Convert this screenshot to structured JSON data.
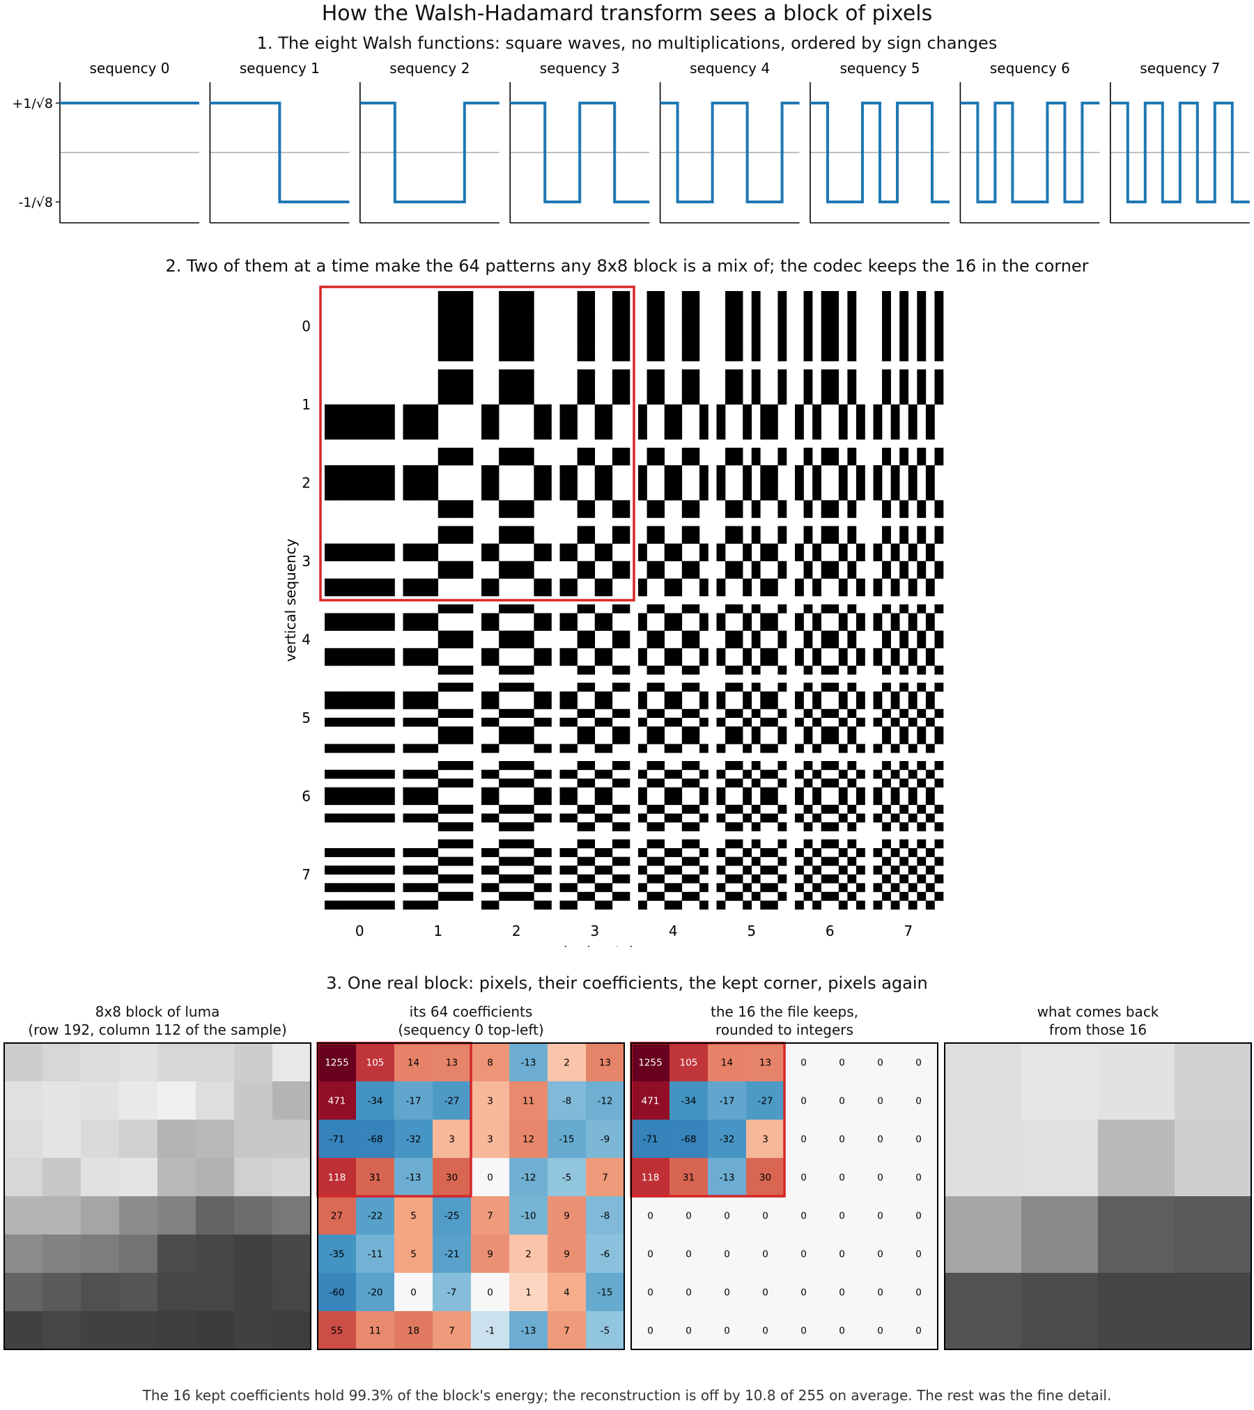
{
  "title": "How the Walsh-Hadamard transform sees a block of pixels",
  "section1": {
    "heading": "1. The eight Walsh functions: square waves, no multiplications, ordered by sign changes",
    "y_ticks": [
      "+1/√8",
      "-1/√8"
    ],
    "panels": [
      "sequency 0",
      "sequency 1",
      "sequency 2",
      "sequency 3",
      "sequency 4",
      "sequency 5",
      "sequency 6",
      "sequency 7"
    ],
    "line_color": "#1f77b4"
  },
  "section2": {
    "heading": "2. Two of them at a time make the 64 patterns any 8x8 block is a mix of; the codec keeps the 16 in the corner",
    "xlabel": "horizontal sequency",
    "ylabel": "vertical sequency",
    "x_ticks": [
      "0",
      "1",
      "2",
      "3",
      "4",
      "5",
      "6",
      "7"
    ],
    "y_ticks": [
      "0",
      "1",
      "2",
      "3",
      "4",
      "5",
      "6",
      "7"
    ],
    "highlight_color": "#d62728"
  },
  "section3": {
    "heading": "3. One real block: pixels, their coefficients, the kept corner, pixels again",
    "panel_titles": [
      [
        "8x8 block of luma",
        "(row 192, column 112 of the sample)"
      ],
      [
        "its 64 coefficients",
        "(sequency 0 top-left)"
      ],
      [
        "the 16 the file keeps,",
        "rounded to integers"
      ],
      [
        "what comes back",
        "from those 16"
      ]
    ],
    "coefficients": [
      [
        1255,
        105,
        14,
        13,
        8,
        -13,
        2,
        13
      ],
      [
        471,
        -34,
        -17,
        -27,
        3,
        11,
        -8,
        -12
      ],
      [
        -71,
        -68,
        -32,
        3,
        3,
        12,
        -15,
        -9
      ],
      [
        118,
        31,
        -13,
        30,
        0,
        -12,
        -5,
        7
      ],
      [
        27,
        -22,
        5,
        -25,
        7,
        -10,
        9,
        -8
      ],
      [
        -35,
        -11,
        5,
        -21,
        9,
        2,
        9,
        -6
      ],
      [
        -60,
        -20,
        0,
        -7,
        0,
        1,
        4,
        -15
      ],
      [
        55,
        11,
        18,
        7,
        -1,
        -13,
        7,
        -5
      ]
    ],
    "luma_block": [
      [
        205,
        215,
        220,
        225,
        215,
        215,
        205,
        232
      ],
      [
        225,
        228,
        226,
        233,
        240,
        222,
        200,
        180
      ],
      [
        220,
        228,
        218,
        208,
        180,
        185,
        198,
        200
      ],
      [
        215,
        200,
        225,
        228,
        185,
        178,
        208,
        214
      ],
      [
        180,
        180,
        165,
        140,
        130,
        100,
        110,
        120
      ],
      [
        140,
        130,
        125,
        115,
        75,
        70,
        65,
        72
      ],
      [
        100,
        90,
        80,
        85,
        70,
        70,
        65,
        70
      ],
      [
        65,
        70,
        65,
        65,
        62,
        60,
        65,
        62
      ]
    ]
  },
  "footnote": "The 16 kept coefficients hold 99.3% of the block's energy; the reconstruction is off by 10.8 of 255 on average. The rest was the fine detail."
}
